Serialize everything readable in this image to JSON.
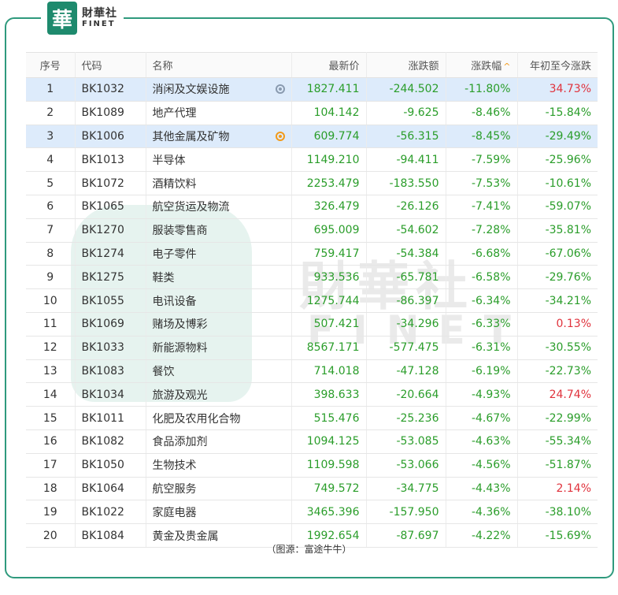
{
  "brand": {
    "seal_char": "華",
    "name_cn": "財華社",
    "name_en": "FINET"
  },
  "watermark": {
    "cn": "財華社",
    "en": "FINET"
  },
  "table": {
    "headers": {
      "index": "序号",
      "code": "代码",
      "name": "名称",
      "price": "最新价",
      "change": "涨跌额",
      "pct": "涨跌幅",
      "ytd": "年初至今涨跌"
    },
    "sort": {
      "column": "pct",
      "direction": "asc",
      "icon": "sort-up-icon"
    },
    "rows": [
      {
        "idx": "1",
        "code": "BK1032",
        "name": "消闲及文娱设施",
        "price": "1827.411",
        "change": "-244.502",
        "pct": "-11.80%",
        "ytd": "34.73%",
        "ytd_dir": "up",
        "highlight": true,
        "icon": "watch-icon"
      },
      {
        "idx": "2",
        "code": "BK1089",
        "name": "地产代理",
        "price": "104.142",
        "change": "-9.625",
        "pct": "-8.46%",
        "ytd": "-15.84%",
        "ytd_dir": "down",
        "highlight": false,
        "icon": ""
      },
      {
        "idx": "3",
        "code": "BK1006",
        "name": "其他金属及矿物",
        "price": "609.774",
        "change": "-56.315",
        "pct": "-8.45%",
        "ytd": "-29.49%",
        "ytd_dir": "down",
        "highlight": true,
        "icon": "watch-icon-active"
      },
      {
        "idx": "4",
        "code": "BK1013",
        "name": "半导体",
        "price": "1149.210",
        "change": "-94.411",
        "pct": "-7.59%",
        "ytd": "-25.96%",
        "ytd_dir": "down",
        "highlight": false,
        "icon": ""
      },
      {
        "idx": "5",
        "code": "BK1072",
        "name": "酒精饮料",
        "price": "2253.479",
        "change": "-183.550",
        "pct": "-7.53%",
        "ytd": "-10.61%",
        "ytd_dir": "down",
        "highlight": false,
        "icon": ""
      },
      {
        "idx": "6",
        "code": "BK1065",
        "name": "航空货运及物流",
        "price": "326.479",
        "change": "-26.126",
        "pct": "-7.41%",
        "ytd": "-59.07%",
        "ytd_dir": "down",
        "highlight": false,
        "icon": ""
      },
      {
        "idx": "7",
        "code": "BK1270",
        "name": "服装零售商",
        "price": "695.009",
        "change": "-54.602",
        "pct": "-7.28%",
        "ytd": "-35.81%",
        "ytd_dir": "down",
        "highlight": false,
        "icon": ""
      },
      {
        "idx": "8",
        "code": "BK1274",
        "name": "电子零件",
        "price": "759.417",
        "change": "-54.384",
        "pct": "-6.68%",
        "ytd": "-67.06%",
        "ytd_dir": "down",
        "highlight": false,
        "icon": ""
      },
      {
        "idx": "9",
        "code": "BK1275",
        "name": "鞋类",
        "price": "933.536",
        "change": "-65.781",
        "pct": "-6.58%",
        "ytd": "-29.76%",
        "ytd_dir": "down",
        "highlight": false,
        "icon": ""
      },
      {
        "idx": "10",
        "code": "BK1055",
        "name": "电讯设备",
        "price": "1275.744",
        "change": "-86.397",
        "pct": "-6.34%",
        "ytd": "-34.21%",
        "ytd_dir": "down",
        "highlight": false,
        "icon": ""
      },
      {
        "idx": "11",
        "code": "BK1069",
        "name": "赌场及博彩",
        "price": "507.421",
        "change": "-34.296",
        "pct": "-6.33%",
        "ytd": "0.13%",
        "ytd_dir": "up",
        "highlight": false,
        "icon": ""
      },
      {
        "idx": "12",
        "code": "BK1033",
        "name": "新能源物料",
        "price": "8567.171",
        "change": "-577.475",
        "pct": "-6.31%",
        "ytd": "-30.55%",
        "ytd_dir": "down",
        "highlight": false,
        "icon": ""
      },
      {
        "idx": "13",
        "code": "BK1083",
        "name": "餐饮",
        "price": "714.018",
        "change": "-47.128",
        "pct": "-6.19%",
        "ytd": "-22.73%",
        "ytd_dir": "down",
        "highlight": false,
        "icon": ""
      },
      {
        "idx": "14",
        "code": "BK1034",
        "name": "旅游及观光",
        "price": "398.633",
        "change": "-20.664",
        "pct": "-4.93%",
        "ytd": "24.74%",
        "ytd_dir": "up",
        "highlight": false,
        "icon": ""
      },
      {
        "idx": "15",
        "code": "BK1011",
        "name": "化肥及农用化合物",
        "price": "515.476",
        "change": "-25.236",
        "pct": "-4.67%",
        "ytd": "-22.99%",
        "ytd_dir": "down",
        "highlight": false,
        "icon": ""
      },
      {
        "idx": "16",
        "code": "BK1082",
        "name": "食品添加剂",
        "price": "1094.125",
        "change": "-53.085",
        "pct": "-4.63%",
        "ytd": "-55.34%",
        "ytd_dir": "down",
        "highlight": false,
        "icon": ""
      },
      {
        "idx": "17",
        "code": "BK1050",
        "name": "生物技术",
        "price": "1109.598",
        "change": "-53.066",
        "pct": "-4.56%",
        "ytd": "-51.87%",
        "ytd_dir": "down",
        "highlight": false,
        "icon": ""
      },
      {
        "idx": "18",
        "code": "BK1064",
        "name": "航空服务",
        "price": "749.572",
        "change": "-34.775",
        "pct": "-4.43%",
        "ytd": "2.14%",
        "ytd_dir": "up",
        "highlight": false,
        "icon": ""
      },
      {
        "idx": "19",
        "code": "BK1022",
        "name": "家庭电器",
        "price": "3465.396",
        "change": "-157.950",
        "pct": "-4.36%",
        "ytd": "-38.10%",
        "ytd_dir": "down",
        "highlight": false,
        "icon": ""
      },
      {
        "idx": "20",
        "code": "BK1084",
        "name": "黄金及贵金属",
        "price": "1992.654",
        "change": "-87.697",
        "pct": "-4.22%",
        "ytd": "-15.69%",
        "ytd_dir": "down",
        "highlight": false,
        "icon": ""
      }
    ]
  },
  "caption": "（图源：富途牛牛）",
  "colors": {
    "up": "#e0323c",
    "down": "#2a9d2a",
    "highlight_row": "#ddebfb",
    "frame": "#2f9a7d",
    "sort_arrow": "#f29a1a"
  }
}
